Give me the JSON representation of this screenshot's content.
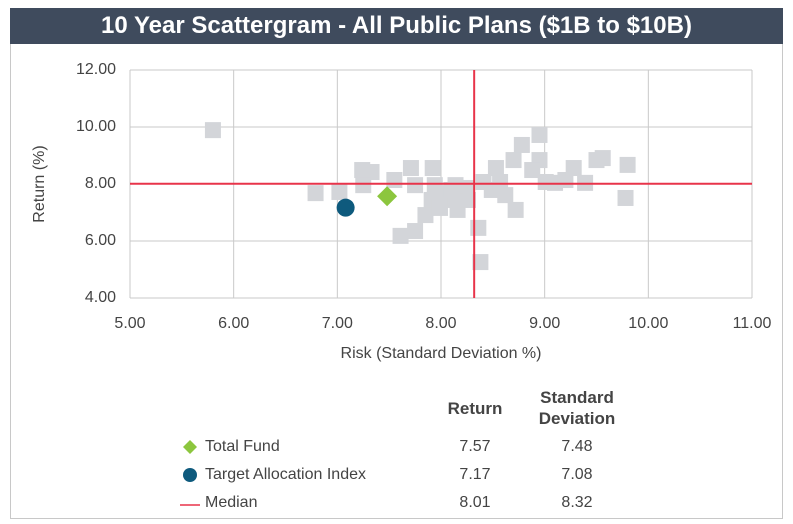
{
  "chart_data": {
    "type": "scatter",
    "title": "10 Year Scattergram - All Public Plans ($1B to $10B)",
    "xlabel": "Risk (Standard Deviation %)",
    "ylabel": "Return (%)",
    "xlim": [
      5,
      11
    ],
    "ylim": [
      4,
      12
    ],
    "xticks": [
      {
        "value": 5,
        "label": "5.00"
      },
      {
        "value": 6,
        "label": "6.00"
      },
      {
        "value": 7,
        "label": "7.00"
      },
      {
        "value": 8,
        "label": "8.00"
      },
      {
        "value": 9,
        "label": "9.00"
      },
      {
        "value": 10,
        "label": "10.00"
      },
      {
        "value": 11,
        "label": "11.00"
      }
    ],
    "yticks": [
      {
        "value": 4,
        "label": "4.00"
      },
      {
        "value": 6,
        "label": "6.00"
      },
      {
        "value": 8,
        "label": "8.00"
      },
      {
        "value": 10,
        "label": "10.00"
      },
      {
        "value": 12,
        "label": "12.00"
      }
    ],
    "grid": true,
    "universe": {
      "color": "#d3d5d9",
      "x": [
        5.8,
        6.79,
        7.02,
        7.24,
        7.33,
        7.25,
        7.55,
        7.71,
        7.61,
        7.75,
        7.85,
        7.75,
        7.92,
        7.94,
        7.91,
        7.99,
        8.05,
        8.14,
        8.16,
        8.24,
        8.26,
        8.36,
        8.38,
        8.41,
        8.49,
        8.53,
        8.57,
        8.62,
        8.72,
        8.7,
        8.78,
        8.95,
        8.95,
        9.01,
        9.1,
        9.2,
        9.28,
        9.39,
        9.5,
        9.56,
        9.8,
        9.78,
        8.88,
        8.14,
        8.1
      ],
      "y": [
        9.89,
        7.68,
        7.72,
        8.49,
        8.42,
        7.96,
        8.14,
        8.56,
        6.18,
        6.35,
        6.91,
        7.96,
        8.56,
        7.96,
        7.44,
        7.16,
        7.68,
        7.44,
        7.09,
        7.86,
        7.44,
        6.46,
        5.26,
        8.07,
        7.79,
        8.56,
        8.07,
        7.61,
        7.09,
        8.84,
        9.37,
        9.72,
        8.84,
        8.07,
        8.04,
        8.14,
        8.56,
        8.04,
        8.84,
        8.91,
        8.67,
        7.51,
        8.49,
        7.96,
        7.79
      ]
    },
    "series": [
      {
        "name": "Total Fund",
        "color": "#8cc63e",
        "marker": "diamond",
        "x": [
          7.48
        ],
        "y": [
          7.57
        ]
      },
      {
        "name": "Target Allocation Index",
        "color": "#0e5a7d",
        "marker": "circle",
        "x": [
          7.08
        ],
        "y": [
          7.17
        ]
      }
    ],
    "median": {
      "name": "Median",
      "color": "#e8344a",
      "x": 8.32,
      "y": 8.01
    },
    "table_headers": [
      "Return",
      "Standard Deviation"
    ]
  }
}
